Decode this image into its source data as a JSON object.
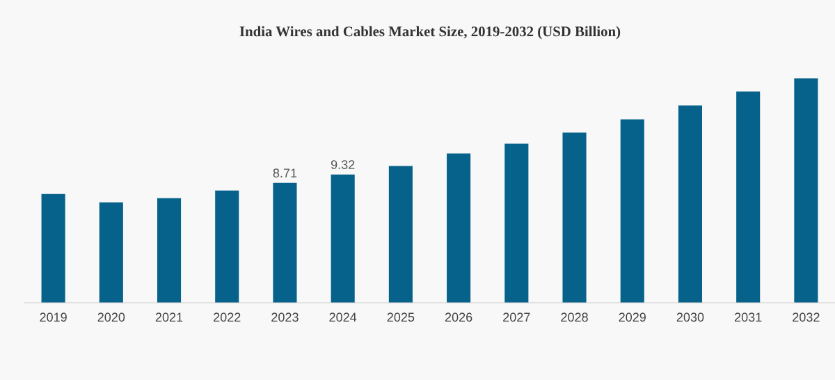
{
  "chart_data": {
    "type": "bar",
    "title": "India Wires and Cables Market Size, 2019-2032 (USD Billion)",
    "categories": [
      "2019",
      "2020",
      "2021",
      "2022",
      "2023",
      "2024",
      "2025",
      "2026",
      "2027",
      "2028",
      "2029",
      "2030",
      "2031",
      "2032"
    ],
    "values": [
      7.9,
      7.29,
      7.6,
      8.15,
      8.71,
      9.32,
      9.93,
      10.84,
      11.55,
      12.36,
      13.32,
      14.33,
      15.35,
      16.31
    ],
    "value_labels": [
      null,
      null,
      null,
      null,
      "8.71",
      "9.32",
      null,
      null,
      null,
      null,
      null,
      null,
      null,
      null
    ],
    "color": "#06628a",
    "grid": false,
    "tick_labels": "x"
  }
}
